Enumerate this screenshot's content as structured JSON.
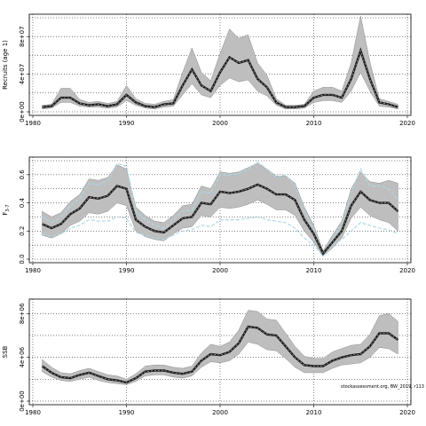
{
  "credit": "stockassessment.org, BW_2019, r113",
  "x_axis_ticks": [
    "1980",
    "1990",
    "2000",
    "2010",
    "2020"
  ],
  "colors": {
    "band": "#bebebe",
    "band_edge": "#8c8c8c",
    "line": "#1a1a1a",
    "reference": "#add8e6",
    "grid": "#000000"
  },
  "chart_data": [
    {
      "type": "line",
      "ylabel": "Recruits (age 1)",
      "xlim": [
        1980,
        2020
      ],
      "ylim": [
        0,
        100000000
      ],
      "yticks": [
        "0e+00",
        "4e+07",
        "8e+07"
      ],
      "ytick_values": [
        0,
        40000000,
        80000000
      ],
      "grid": true,
      "x": [
        1981,
        1982,
        1983,
        1984,
        1985,
        1986,
        1987,
        1988,
        1989,
        1990,
        1991,
        1992,
        1993,
        1994,
        1995,
        1996,
        1997,
        1998,
        1999,
        2000,
        2001,
        2002,
        2003,
        2004,
        2005,
        2006,
        2007,
        2008,
        2009,
        2010,
        2011,
        2012,
        2013,
        2014,
        2015,
        2016,
        2017,
        2018,
        2019
      ],
      "series": [
        {
          "style": "estimate",
          "values": [
            5,
            6,
            15,
            15,
            9,
            7,
            8,
            6,
            8,
            18,
            10,
            6,
            5,
            8,
            9,
            28,
            45,
            28,
            22,
            42,
            58,
            52,
            55,
            35,
            26,
            10,
            5,
            5,
            6,
            15,
            18,
            18,
            15,
            35,
            65,
            35,
            10,
            8,
            5
          ],
          "lower": [
            3,
            4,
            10,
            10,
            6,
            5,
            5,
            4,
            5,
            12,
            7,
            4,
            3,
            5,
            6,
            18,
            30,
            18,
            15,
            28,
            36,
            32,
            34,
            22,
            17,
            7,
            3,
            3,
            4,
            10,
            12,
            12,
            10,
            22,
            42,
            22,
            6,
            5,
            3
          ],
          "upper": [
            7,
            8,
            25,
            25,
            13,
            10,
            11,
            9,
            11,
            28,
            14,
            9,
            8,
            11,
            13,
            42,
            68,
            42,
            33,
            62,
            88,
            78,
            82,
            52,
            39,
            14,
            7,
            7,
            8,
            22,
            26,
            26,
            22,
            52,
            102,
            53,
            14,
            11,
            8
          ]
        }
      ]
    },
    {
      "type": "line",
      "ylabel": "F",
      "ylabel_sub": "3-7",
      "xlim": [
        1980,
        2020
      ],
      "ylim": [
        0,
        0.7
      ],
      "yticks": [
        "0.0",
        "0.2",
        "0.4",
        "0.6"
      ],
      "ytick_values": [
        0,
        0.2,
        0.4,
        0.6
      ],
      "grid": true,
      "x": [
        1981,
        1982,
        1983,
        1984,
        1985,
        1986,
        1987,
        1988,
        1989,
        1990,
        1991,
        1992,
        1993,
        1994,
        1995,
        1996,
        1997,
        1998,
        1999,
        2000,
        2001,
        2002,
        2003,
        2004,
        2005,
        2006,
        2007,
        2008,
        2009,
        2010,
        2011,
        2012,
        2013,
        2014,
        2015,
        2016,
        2017,
        2018,
        2019
      ],
      "series": [
        {
          "style": "estimate",
          "values": [
            0.25,
            0.22,
            0.25,
            0.32,
            0.36,
            0.44,
            0.43,
            0.45,
            0.52,
            0.5,
            0.28,
            0.23,
            0.2,
            0.19,
            0.24,
            0.29,
            0.3,
            0.4,
            0.39,
            0.48,
            0.47,
            0.48,
            0.5,
            0.53,
            0.5,
            0.46,
            0.46,
            0.42,
            0.28,
            0.18,
            0.04,
            0.12,
            0.2,
            0.38,
            0.48,
            0.42,
            0.4,
            0.4,
            0.34
          ],
          "lower": [
            0.17,
            0.15,
            0.18,
            0.24,
            0.27,
            0.33,
            0.32,
            0.34,
            0.4,
            0.38,
            0.2,
            0.16,
            0.14,
            0.13,
            0.18,
            0.22,
            0.23,
            0.31,
            0.3,
            0.37,
            0.36,
            0.37,
            0.39,
            0.42,
            0.39,
            0.35,
            0.35,
            0.31,
            0.2,
            0.12,
            0.02,
            0.08,
            0.15,
            0.29,
            0.37,
            0.31,
            0.28,
            0.26,
            0.2
          ],
          "upper": [
            0.34,
            0.3,
            0.33,
            0.41,
            0.46,
            0.57,
            0.56,
            0.58,
            0.67,
            0.64,
            0.37,
            0.31,
            0.27,
            0.26,
            0.31,
            0.38,
            0.39,
            0.52,
            0.5,
            0.62,
            0.61,
            0.62,
            0.65,
            0.68,
            0.64,
            0.59,
            0.59,
            0.54,
            0.37,
            0.24,
            0.06,
            0.17,
            0.27,
            0.5,
            0.62,
            0.55,
            0.54,
            0.56,
            0.54
          ]
        },
        {
          "style": "reference-upper",
          "values": [
            0.3,
            0.26,
            0.3,
            0.38,
            0.43,
            0.54,
            0.53,
            0.56,
            0.68,
            0.66,
            0.34,
            0.28,
            0.24,
            0.22,
            0.28,
            0.34,
            0.35,
            0.48,
            0.47,
            0.6,
            0.6,
            0.61,
            0.64,
            0.69,
            0.64,
            0.58,
            0.6,
            0.52,
            0.34,
            0.21,
            0.03,
            0.14,
            0.25,
            0.47,
            0.64,
            0.52,
            0.52,
            0.5,
            0.42
          ]
        },
        {
          "style": "reference-lower",
          "values": [
            0.18,
            0.16,
            0.18,
            0.22,
            0.24,
            0.28,
            0.27,
            0.27,
            0.3,
            0.29,
            0.19,
            0.17,
            0.15,
            0.14,
            0.17,
            0.2,
            0.21,
            0.24,
            0.23,
            0.28,
            0.28,
            0.28,
            0.29,
            0.3,
            0.28,
            0.27,
            0.26,
            0.22,
            0.15,
            0.1,
            0.02,
            0.1,
            0.14,
            0.2,
            0.26,
            0.24,
            0.22,
            0.21,
            0.18
          ]
        }
      ]
    },
    {
      "type": "line",
      "ylabel": "SSB",
      "xlim": [
        1980,
        2020
      ],
      "ylim": [
        0,
        9000000
      ],
      "yticks": [
        "0e+00",
        "4e+06",
        "8e+06"
      ],
      "ytick_values": [
        0,
        4000000,
        8000000
      ],
      "grid": true,
      "x": [
        1981,
        1982,
        1983,
        1984,
        1985,
        1986,
        1987,
        1988,
        1989,
        1990,
        1991,
        1992,
        1993,
        1994,
        1995,
        1996,
        1997,
        1998,
        1999,
        2000,
        2001,
        2002,
        2003,
        2004,
        2005,
        2006,
        2007,
        2008,
        2009,
        2010,
        2011,
        2012,
        2013,
        2014,
        2015,
        2016,
        2017,
        2018,
        2019
      ],
      "series": [
        {
          "style": "estimate",
          "values": [
            3.2,
            2.6,
            2.2,
            2.1,
            2.4,
            2.6,
            2.3,
            2.0,
            1.9,
            1.7,
            2.1,
            2.7,
            2.8,
            2.8,
            2.6,
            2.5,
            2.7,
            3.7,
            4.3,
            4.2,
            4.5,
            5.3,
            6.8,
            6.7,
            6.1,
            6.0,
            5.0,
            4.0,
            3.3,
            3.2,
            3.2,
            3.7,
            4.0,
            4.2,
            4.3,
            5.0,
            6.2,
            6.2,
            5.6
          ],
          "lower": [
            2.7,
            2.2,
            1.9,
            1.8,
            2.0,
            2.2,
            1.9,
            1.7,
            1.6,
            1.5,
            1.8,
            2.3,
            2.4,
            2.4,
            2.2,
            2.1,
            2.3,
            3.1,
            3.6,
            3.5,
            3.7,
            4.3,
            5.4,
            5.2,
            4.7,
            4.6,
            3.9,
            3.1,
            2.6,
            2.6,
            2.6,
            3.0,
            3.3,
            3.4,
            3.5,
            4.0,
            4.9,
            4.8,
            4.3
          ],
          "upper": [
            3.8,
            3.1,
            2.6,
            2.5,
            2.8,
            3.0,
            2.7,
            2.4,
            2.3,
            2.0,
            2.5,
            3.2,
            3.3,
            3.3,
            3.1,
            3.0,
            3.2,
            4.4,
            5.2,
            5.0,
            5.4,
            6.5,
            8.3,
            8.2,
            7.5,
            7.4,
            6.2,
            5.0,
            4.1,
            3.9,
            3.9,
            4.5,
            4.8,
            5.1,
            5.2,
            6.1,
            7.8,
            8.0,
            7.3
          ]
        }
      ]
    }
  ]
}
